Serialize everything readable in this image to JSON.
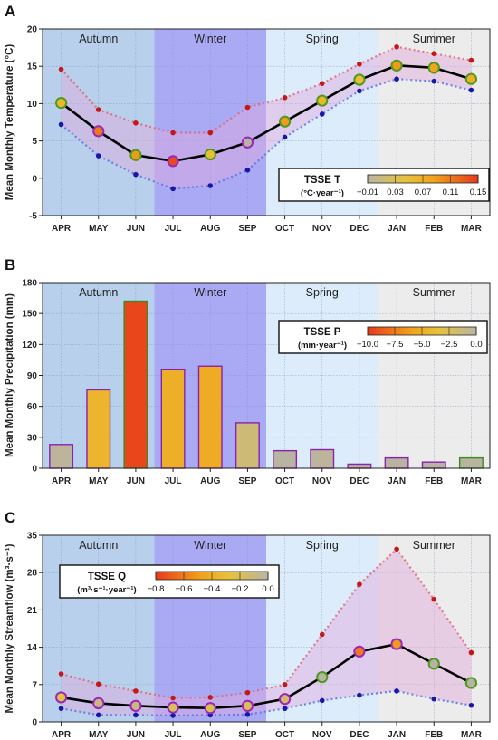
{
  "months": [
    "APR",
    "MAY",
    "JUN",
    "JUL",
    "AUG",
    "SEP",
    "OCT",
    "NOV",
    "DEC",
    "JAN",
    "FEB",
    "MAR"
  ],
  "seasons": [
    {
      "name": "Autumn",
      "color": "#b8d0ec"
    },
    {
      "name": "Winter",
      "color": "#aaaaf4"
    },
    {
      "name": "Spring",
      "color": "#dcecfa"
    },
    {
      "name": "Summer",
      "color": "#ececec"
    }
  ],
  "chart_data": [
    {
      "type": "line",
      "panel_letter": "A",
      "ylabel": "Mean Monthly Temperature (°C)",
      "ylim": [
        -5,
        20
      ],
      "yticks": [
        "-5",
        "0",
        "5",
        "10",
        "15",
        "20"
      ],
      "series": [
        {
          "name": "mean",
          "values": [
            10.1,
            6.3,
            3.1,
            2.3,
            3.2,
            4.8,
            7.6,
            10.4,
            13.2,
            15.1,
            14.8,
            13.3
          ]
        },
        {
          "values": [
            14.6,
            9.2,
            7.4,
            6.1,
            6.1,
            9.5,
            10.8,
            12.7,
            15.3,
            17.6,
            16.7,
            15.8
          ]
        },
        {
          "values": [
            7.2,
            3.0,
            0.5,
            -1.4,
            -1.0,
            1.1,
            5.5,
            8.6,
            11.7,
            13.3,
            13.0,
            11.8
          ]
        }
      ],
      "trend": [
        0.06,
        0.11,
        0.09,
        0.14,
        0.05,
        -0.01,
        0.09,
        0.06,
        0.05,
        0.09,
        0.08,
        0.07
      ],
      "legend": {
        "title": "TSSE T",
        "unit": "(°C·year⁻¹)",
        "ticks": [
          "−0.01",
          "0.03",
          "0.07",
          "0.11",
          "0.15"
        ],
        "placement": "bottom-right"
      }
    },
    {
      "type": "bar",
      "panel_letter": "B",
      "ylabel": "Mean Monthly Precipitation (mm)",
      "ylim": [
        0,
        180
      ],
      "yticks": [
        "0",
        "30",
        "60",
        "90",
        "120",
        "150",
        "180"
      ],
      "values": [
        23,
        76,
        162,
        96,
        99,
        44,
        17,
        18,
        4,
        10,
        6,
        10
      ],
      "trend": [
        -0.3,
        -4.5,
        -9.5,
        -5.0,
        -5.3,
        -1.5,
        -0.1,
        -0.3,
        -0.1,
        -0.1,
        -0.1,
        -0.05
      ],
      "legend": {
        "title": "TSSE P",
        "unit": "(mm·year⁻¹)",
        "ticks": [
          "−10.0",
          "−7.5",
          "−5.0",
          "−2.5",
          "0.0"
        ],
        "placement": "top-right"
      }
    },
    {
      "type": "line",
      "panel_letter": "C",
      "ylabel": "Mean Monthly Streamflow (m³·s⁻¹)",
      "ylim": [
        0,
        35
      ],
      "yticks": [
        "0",
        "7",
        "14",
        "21",
        "28",
        "35"
      ],
      "series": [
        {
          "name": "mean",
          "values": [
            4.6,
            3.5,
            3.0,
            2.7,
            2.6,
            3.0,
            4.3,
            8.4,
            13.2,
            14.6,
            10.9,
            7.3
          ]
        },
        {
          "values": [
            9.0,
            7.1,
            5.8,
            4.5,
            4.6,
            5.5,
            7.0,
            16.4,
            25.8,
            32.4,
            23.0,
            13.0
          ]
        },
        {
          "values": [
            2.5,
            1.3,
            1.3,
            1.2,
            1.3,
            1.4,
            2.5,
            4.0,
            5.0,
            5.8,
            4.3,
            3.1
          ]
        }
      ],
      "trend": [
        -0.25,
        -0.1,
        -0.1,
        -0.2,
        -0.2,
        -0.2,
        -0.15,
        0.0,
        -0.6,
        -0.5,
        0.0,
        0.0
      ],
      "legend": {
        "title": "TSSE Q",
        "unit": "(m³·s⁻¹·year⁻¹)",
        "ticks": [
          "−0.8",
          "−0.6",
          "−0.4",
          "−0.2",
          "0.0"
        ],
        "placement": "top-left"
      }
    }
  ]
}
